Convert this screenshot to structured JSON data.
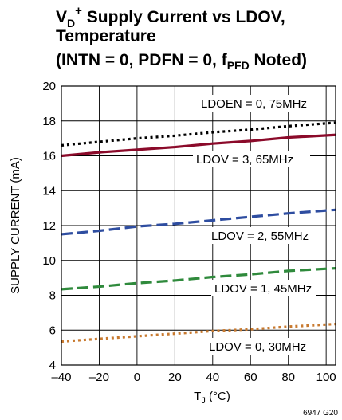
{
  "chart_data": {
    "type": "line",
    "title": {
      "line1_main": "V",
      "line1_sub": "D",
      "line1_sup": "+",
      "line1_rest": " Supply Current vs LDOV,",
      "line2": "Temperature",
      "line3_main": "(INTN = 0, PDFN = 0, f",
      "line3_sub": "PFD",
      "line3_rest": " Noted)"
    },
    "xlabel": {
      "main": "T",
      "sub": "J",
      "rest": " (°C)"
    },
    "ylabel": "SUPPLY CURRENT (mA)",
    "xlim": [
      -40,
      105
    ],
    "ylim": [
      4,
      20
    ],
    "xticks": [
      -40,
      -20,
      0,
      20,
      40,
      60,
      80,
      100
    ],
    "xtick_labels": [
      "–40",
      "–20",
      "0",
      "20",
      "40",
      "60",
      "80",
      "100"
    ],
    "yticks": [
      4,
      6,
      8,
      10,
      12,
      14,
      16,
      18,
      20
    ],
    "ytick_labels": [
      "4",
      "6",
      "8",
      "10",
      "12",
      "14",
      "16",
      "18",
      "20"
    ],
    "grid": true,
    "series": [
      {
        "name": "LDOEN = 0, 75MHz",
        "color": "#000000",
        "style": "dotted",
        "x": [
          -40,
          -20,
          0,
          20,
          40,
          60,
          80,
          105
        ],
        "y": [
          16.6,
          16.8,
          17.0,
          17.15,
          17.35,
          17.5,
          17.7,
          17.9
        ]
      },
      {
        "name": "LDOV = 3, 65MHz",
        "color": "#8b0a2a",
        "style": "solid",
        "x": [
          -40,
          -20,
          0,
          20,
          40,
          60,
          80,
          105
        ],
        "y": [
          16.0,
          16.2,
          16.35,
          16.5,
          16.7,
          16.85,
          17.05,
          17.2
        ]
      },
      {
        "name": "LDOV = 2, 55MHz",
        "color": "#2e4da0",
        "style": "dashed",
        "x": [
          -40,
          -20,
          0,
          20,
          40,
          60,
          80,
          105
        ],
        "y": [
          11.5,
          11.7,
          11.95,
          12.1,
          12.3,
          12.5,
          12.7,
          12.9
        ]
      },
      {
        "name": "LDOV = 1, 45MHz",
        "color": "#2f8a3c",
        "style": "dashed",
        "x": [
          -40,
          -20,
          0,
          20,
          40,
          60,
          80,
          105
        ],
        "y": [
          8.35,
          8.5,
          8.7,
          8.85,
          9.05,
          9.2,
          9.4,
          9.55
        ]
      },
      {
        "name": "LDOV = 0, 30MHz",
        "color": "#c87a30",
        "style": "dotted",
        "x": [
          -40,
          -20,
          0,
          20,
          40,
          60,
          80,
          105
        ],
        "y": [
          5.35,
          5.5,
          5.65,
          5.8,
          5.95,
          6.05,
          6.2,
          6.35
        ]
      }
    ],
    "annotations": [
      {
        "text": "LDOEN = 0, 75MHz",
        "series": 0
      },
      {
        "text": "LDOV = 3, 65MHz",
        "series": 1
      },
      {
        "text": "LDOV = 2, 55MHz",
        "series": 2
      },
      {
        "text": "LDOV = 1, 45MHz",
        "series": 3
      },
      {
        "text": "LDOV = 0, 30MHz",
        "series": 4
      }
    ],
    "footnote": "6947 G20"
  }
}
